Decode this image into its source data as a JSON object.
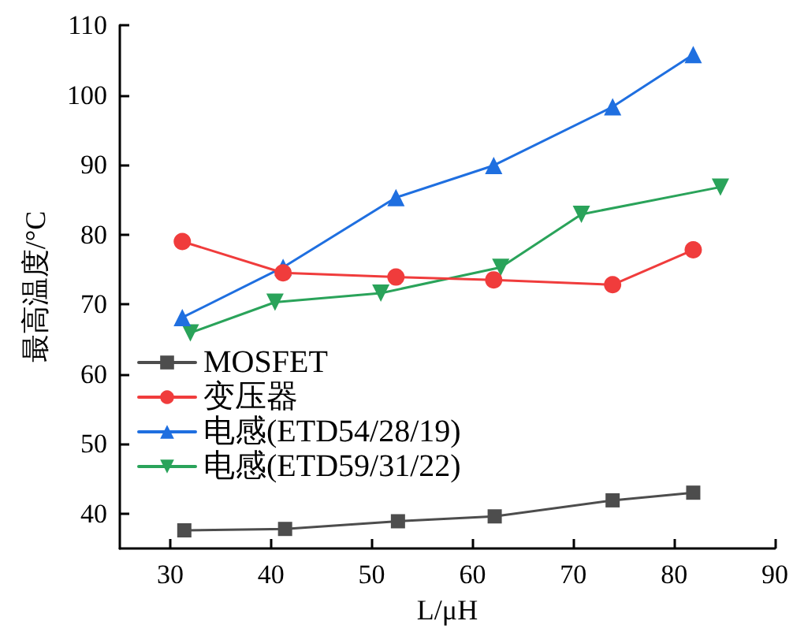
{
  "chart_data": {
    "type": "line",
    "xlabel": "L/μH",
    "ylabel": "最高温度/°C",
    "xlim": [
      25,
      90
    ],
    "xticks": [
      30,
      40,
      50,
      60,
      70,
      80,
      90
    ],
    "ylim": [
      35,
      110
    ],
    "yticks": [
      40,
      50,
      60,
      70,
      80,
      90,
      100,
      110
    ],
    "grid": false,
    "legend": "bottom left",
    "line_style": "solid",
    "series": [
      {
        "name": "MOSFET",
        "color": "#4d4d4d",
        "marker": "square",
        "x": [
          31.4,
          41.4,
          52.6,
          62.2,
          73.9,
          81.9
        ],
        "values": [
          37.6,
          37.8,
          38.9,
          39.6,
          41.9,
          43.0
        ]
      },
      {
        "name": "变压器",
        "color": "#f03c3c",
        "marker": "circle",
        "x": [
          31.2,
          41.2,
          52.4,
          62.1,
          73.9,
          81.9
        ],
        "values": [
          79.0,
          74.5,
          73.9,
          73.5,
          72.8,
          77.8
        ]
      },
      {
        "name": "电感(ETD54/28/19)",
        "color": "#1f6fe0",
        "marker": "triangle",
        "x": [
          31.2,
          41.2,
          52.4,
          62.1,
          73.9,
          81.9
        ],
        "values": [
          68.1,
          75.3,
          85.3,
          89.9,
          98.3,
          105.8
        ]
      },
      {
        "name": "电感(ETD59/31/22)",
        "color": "#2aa35a",
        "marker": "triangle-down",
        "x": [
          32.0,
          40.4,
          50.9,
          62.8,
          70.8,
          84.6
        ],
        "values": [
          65.9,
          70.3,
          71.6,
          75.3,
          82.9,
          86.8
        ]
      }
    ]
  }
}
